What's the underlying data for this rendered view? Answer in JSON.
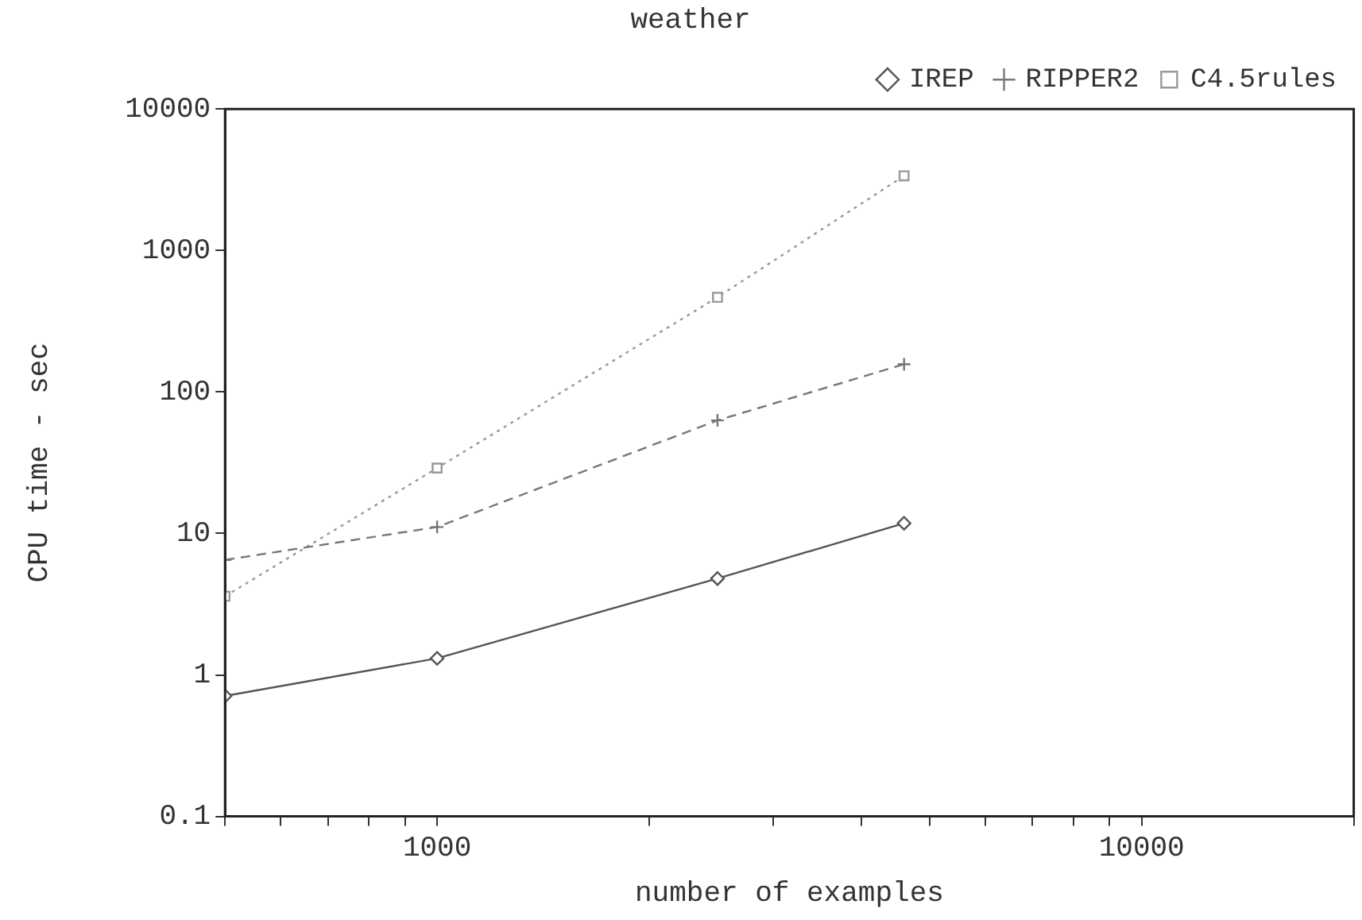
{
  "chart_data": {
    "type": "line",
    "title": "weather",
    "xlabel": "number of examples",
    "ylabel": "CPU time - sec",
    "x": [
      500,
      1000,
      2500,
      4600
    ],
    "series": [
      {
        "name": "IREP",
        "color": "#555555",
        "values": [
          0.71,
          1.31,
          4.8,
          11.8
        ],
        "marker": "diamond",
        "line_style": "solid"
      },
      {
        "name": "RIPPER2",
        "color": "#777777",
        "values": [
          6.5,
          11.1,
          63,
          157
        ],
        "marker": "cross",
        "line_style": "dashed"
      },
      {
        "name": "C4.5rules",
        "color": "#999999",
        "values": [
          3.6,
          29,
          467,
          3370
        ],
        "marker": "square",
        "line_style": "dotted"
      }
    ],
    "log": "xy",
    "xlim": [
      500,
      20000
    ],
    "ylim": [
      0.1,
      10000
    ],
    "xticks": [
      {
        "value": 500,
        "label": null
      },
      {
        "value": 600,
        "label": null
      },
      {
        "value": 700,
        "label": null
      },
      {
        "value": 800,
        "label": null
      },
      {
        "value": 900,
        "label": null
      },
      1000,
      {
        "value": 2000,
        "label": null
      },
      {
        "value": 3000,
        "label": null
      },
      {
        "value": 4000,
        "label": null
      },
      {
        "value": 5000,
        "label": null
      },
      {
        "value": 6000,
        "label": null
      },
      {
        "value": 7000,
        "label": null
      },
      {
        "value": 8000,
        "label": null
      },
      {
        "value": 9000,
        "label": null
      },
      10000,
      {
        "value": 20000,
        "label": null
      }
    ],
    "yticks": [
      0.1,
      1,
      10,
      100,
      1000,
      10000
    ],
    "grid": false,
    "legend": "top right"
  }
}
